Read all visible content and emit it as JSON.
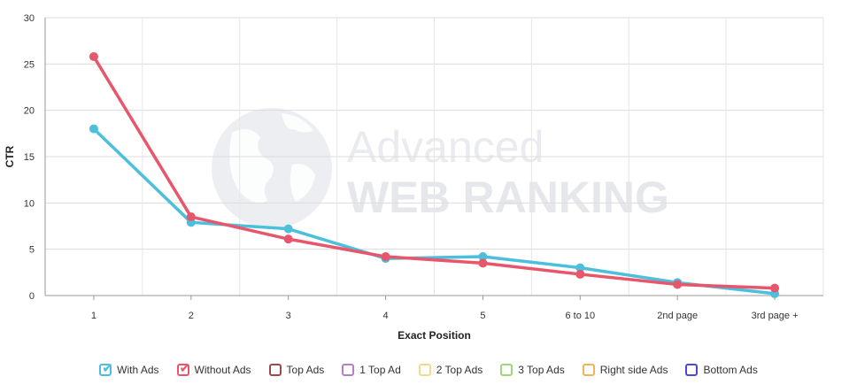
{
  "chart_data": {
    "type": "line",
    "categories": [
      "1",
      "2",
      "3",
      "4",
      "5",
      "6 to 10",
      "2nd page",
      "3rd page +"
    ],
    "series": [
      {
        "name": "With Ads",
        "color": "#4bbfdc",
        "values": [
          18.0,
          7.9,
          7.2,
          4.0,
          4.2,
          3.0,
          1.4,
          0.2
        ]
      },
      {
        "name": "Without Ads",
        "color": "#e8566b",
        "values": [
          25.8,
          8.5,
          6.1,
          4.2,
          3.5,
          2.3,
          1.2,
          0.8
        ]
      }
    ],
    "xlabel": "Exact Position",
    "ylabel": "CTR",
    "ylim": [
      0,
      30
    ],
    "yticks": [
      0,
      5,
      10,
      15,
      20,
      25,
      30
    ],
    "grid": true,
    "legend_position": "bottom"
  },
  "watermark": {
    "line1": "Advanced",
    "line2": "WEB RANKING",
    "icon": "globe-icon"
  },
  "legend": [
    {
      "label": "With Ads",
      "color": "#4bbfdc",
      "checked": true,
      "active": true
    },
    {
      "label": "Without Ads",
      "color": "#e8566b",
      "checked": true,
      "active": true
    },
    {
      "label": "Top Ads",
      "color": "#9b4a4a",
      "checked": false,
      "active": false
    },
    {
      "label": "1 Top Ad",
      "color": "#b57ec9",
      "checked": false,
      "active": false
    },
    {
      "label": "2 Top Ads",
      "color": "#f5d98a",
      "checked": false,
      "active": false
    },
    {
      "label": "3 Top Ads",
      "color": "#9fd67a",
      "checked": false,
      "active": false
    },
    {
      "label": "Right side Ads",
      "color": "#f0b454",
      "checked": false,
      "active": false
    },
    {
      "label": "Bottom Ads",
      "color": "#4a4ad0",
      "checked": false,
      "active": false
    }
  ]
}
